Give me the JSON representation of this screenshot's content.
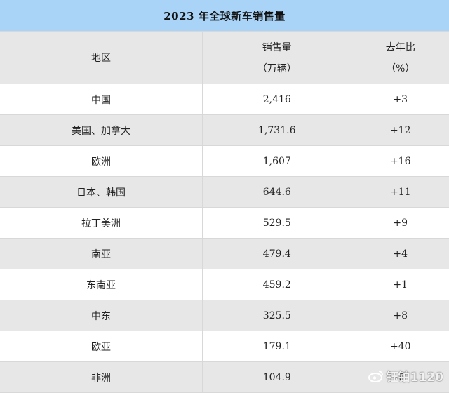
{
  "table": {
    "title": "2023 年全球新车销售量",
    "headers": {
      "region": "地区",
      "sales_line1": "销售量",
      "sales_line2": "（万辆）",
      "yoy_line1": "去年比",
      "yoy_line2": "（%）"
    },
    "rows": [
      {
        "region": "中国",
        "sales": "2,416",
        "yoy": "+3"
      },
      {
        "region": "美国、加拿大",
        "sales": "1,731.6",
        "yoy": "+12"
      },
      {
        "region": "欧洲",
        "sales": "1,607",
        "yoy": "+16"
      },
      {
        "region": "日本、韩国",
        "sales": "644.6",
        "yoy": "+11"
      },
      {
        "region": "拉丁美洲",
        "sales": "529.5",
        "yoy": "+9"
      },
      {
        "region": "南亚",
        "sales": "479.4",
        "yoy": "+4"
      },
      {
        "region": "东南亚",
        "sales": "459.2",
        "yoy": "+1"
      },
      {
        "region": "中东",
        "sales": "325.5",
        "yoy": "+8"
      },
      {
        "region": "欧亚",
        "sales": "179.1",
        "yoy": "+40"
      },
      {
        "region": "非洲",
        "sales": "104.9",
        "yoy": "-5"
      }
    ]
  },
  "watermark": {
    "text": "钰铂1120",
    "icon": "weibo-icon"
  },
  "colors": {
    "title_bg": "#a9d4f7",
    "stripe_bg": "#e7e7e7",
    "border": "#d8d8d8"
  }
}
